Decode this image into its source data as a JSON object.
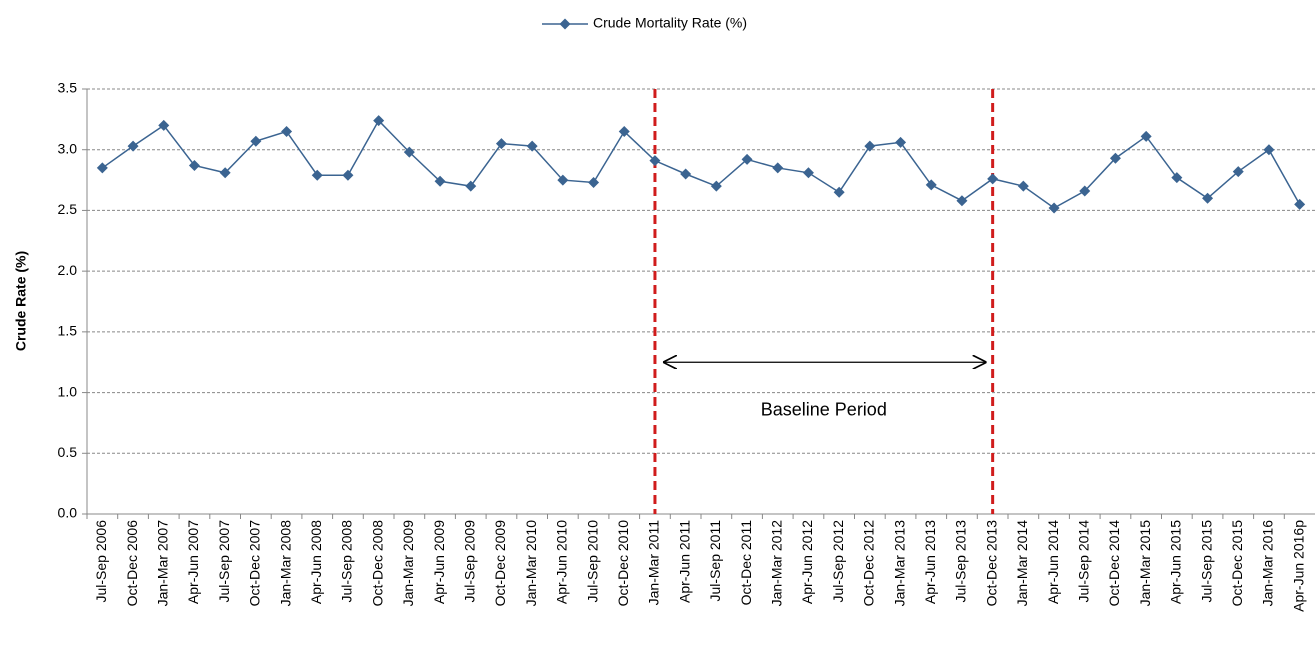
{
  "chart_data": {
    "type": "line",
    "y_label": "Crude Rate (%)",
    "categories": [
      "Jul-Sep 2006",
      "Oct-Dec 2006",
      "Jan-Mar 2007",
      "Apr-Jun 2007",
      "Jul-Sep 2007",
      "Oct-Dec 2007",
      "Jan-Mar 2008",
      "Apr-Jun 2008",
      "Jul-Sep 2008",
      "Oct-Dec 2008",
      "Jan-Mar 2009",
      "Apr-Jun 2009",
      "Jul-Sep 2009",
      "Oct-Dec 2009",
      "Jan-Mar 2010",
      "Apr-Jun 2010",
      "Jul-Sep 2010",
      "Oct-Dec 2010",
      "Jan-Mar 2011",
      "Apr-Jun 2011",
      "Jul-Sep 2011",
      "Oct-Dec 2011",
      "Jan-Mar 2012",
      "Apr-Jun 2012",
      "Jul-Sep 2012",
      "Oct-Dec 2012",
      "Jan-Mar 2013",
      "Apr-Jun 2013",
      "Jul-Sep  2013",
      "Oct-Dec 2013",
      "Jan-Mar 2014",
      "Apr-Jun 2014",
      "Jul-Sep 2014",
      "Oct-Dec 2014",
      "Jan-Mar 2015",
      "Apr-Jun 2015",
      "Jul-Sep 2015",
      "Oct-Dec 2015",
      "Jan-Mar 2016",
      "Apr-Jun 2016p"
    ],
    "series": [
      {
        "name": "Crude Mortality Rate (%)",
        "color": "#3b6491",
        "values": [
          2.85,
          3.03,
          3.2,
          2.87,
          2.81,
          3.07,
          3.15,
          2.79,
          2.79,
          3.24,
          2.98,
          2.74,
          2.7,
          3.05,
          3.03,
          2.75,
          2.73,
          3.15,
          2.91,
          2.8,
          2.7,
          2.92,
          2.85,
          2.81,
          2.65,
          3.03,
          3.06,
          2.71,
          2.58,
          2.76,
          2.7,
          2.52,
          2.66,
          2.93,
          3.11,
          2.77,
          2.6,
          2.82,
          3.0,
          2.55
        ]
      }
    ],
    "ylim": [
      0,
      3.5
    ],
    "yticks": [
      {
        "value": 0,
        "label": "0.0"
      },
      0.5,
      {
        "value": 1,
        "label": "1.0"
      },
      1.5,
      {
        "value": 2,
        "label": "2.0"
      },
      2.5,
      {
        "value": 3,
        "label": "3.0"
      },
      3.5
    ],
    "grid": true,
    "legend": "top",
    "baseline": {
      "label": "Baseline Period",
      "from": "Jan-Mar 2011",
      "to": "Oct-Dec 2013",
      "color": "#d01c1c"
    }
  }
}
